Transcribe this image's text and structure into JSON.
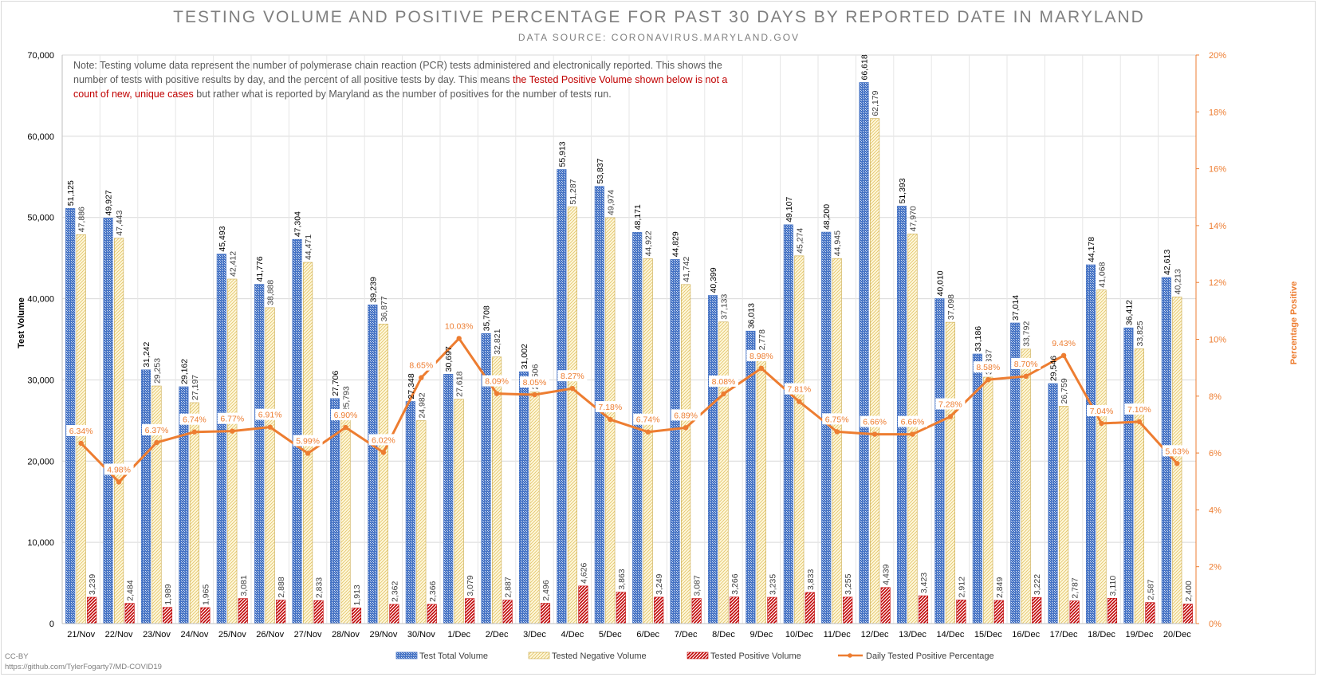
{
  "title": "TESTING VOLUME AND POSITIVE PERCENTAGE FOR PAST 30 DAYS BY REPORTED DATE IN MARYLAND",
  "subtitle": "DATA SOURCE: CORONAVIRUS.MARYLAND.GOV",
  "note": {
    "part1": "Note: Testing volume data represent the number of polymerase chain reaction (PCR) tests administered and electronically reported. This shows the number of tests with positive results by day, and the percent of all positive tests by day. This means ",
    "highlight": "the Tested Positive Volume shown below is not a count of new, unique cases",
    "part2": " but rather what is reported by Maryland as the number of positives for the number of tests run."
  },
  "credit": {
    "license": "CC-BY",
    "url": "https://github.com/TylerFogarty7/MD-COVID19"
  },
  "colors": {
    "total": "#4472c4",
    "negative": "#ffe699",
    "positive": "#c00000",
    "line": "#ed7d31"
  },
  "chart_data": {
    "type": "bar",
    "categories": [
      "21/Nov",
      "22/Nov",
      "23/Nov",
      "24/Nov",
      "25/Nov",
      "26/Nov",
      "27/Nov",
      "28/Nov",
      "29/Nov",
      "30/Nov",
      "1/Dec",
      "2/Dec",
      "3/Dec",
      "4/Dec",
      "5/Dec",
      "6/Dec",
      "7/Dec",
      "8/Dec",
      "9/Dec",
      "10/Dec",
      "11/Dec",
      "12/Dec",
      "13/Dec",
      "14/Dec",
      "15/Dec",
      "16/Dec",
      "17/Dec",
      "18/Dec",
      "19/Dec",
      "20/Dec"
    ],
    "series": [
      {
        "name": "Test Total Volume",
        "type": "bar",
        "axis": "left",
        "values": [
          51125,
          49927,
          31242,
          29162,
          45493,
          41776,
          47304,
          27706,
          39239,
          27348,
          30697,
          35708,
          31002,
          55913,
          53837,
          48171,
          44829,
          40399,
          36013,
          49107,
          48200,
          66618,
          51393,
          40010,
          33186,
          37014,
          29546,
          44178,
          36412,
          42613
        ],
        "labels": [
          "51,125",
          "49,927",
          "31,242",
          "29,162",
          "45,493",
          "41,776",
          "47,304",
          "27,706",
          "39,239",
          "27,348",
          "30,697",
          "35,708",
          "31,002",
          "55,913",
          "53,837",
          "48,171",
          "44,829",
          "40,399",
          "36,013",
          "49,107",
          "48,200",
          "66,618",
          "51,393",
          "40,010",
          "33,186",
          "37,014",
          "29,546",
          "44,178",
          "36,412",
          "42,613"
        ]
      },
      {
        "name": "Tested Negative Volume",
        "type": "bar",
        "axis": "left",
        "values": [
          47886,
          47443,
          29253,
          27197,
          42412,
          38888,
          44471,
          25793,
          36877,
          24982,
          27618,
          32821,
          28506,
          51287,
          49974,
          44922,
          41742,
          37133,
          32778,
          45274,
          44945,
          62179,
          47970,
          37098,
          30337,
          33792,
          26759,
          41068,
          33825,
          40213
        ],
        "labels": [
          "47,886",
          "47,443",
          "29,253",
          "27,197",
          "42,412",
          "38,888",
          "44,471",
          "25,793",
          "36,877",
          "24,982",
          "27,618",
          "32,821",
          "28,506",
          "51,287",
          "49,974",
          "44,922",
          "41,742",
          "37,133",
          "32,778",
          "45,274",
          "44,945",
          "62,179",
          "47,970",
          "37,098",
          "30,337",
          "33,792",
          "26,759",
          "41,068",
          "33,825",
          "40,213"
        ]
      },
      {
        "name": "Tested Positive Volume",
        "type": "bar",
        "axis": "left",
        "values": [
          3239,
          2484,
          1989,
          1965,
          3081,
          2888,
          2833,
          1913,
          2362,
          2366,
          3079,
          2887,
          2496,
          4626,
          3863,
          3249,
          3087,
          3266,
          3235,
          3833,
          3255,
          4439,
          3423,
          2912,
          2849,
          3222,
          2787,
          3110,
          2587,
          2400
        ],
        "labels": [
          "3,239",
          "2,484",
          "1,989",
          "1,965",
          "3,081",
          "2,888",
          "2,833",
          "1,913",
          "2,362",
          "2,366",
          "3,079",
          "2,887",
          "2,496",
          "4,626",
          "3,863",
          "3,249",
          "3,087",
          "3,266",
          "3,235",
          "3,833",
          "3,255",
          "4,439",
          "3,423",
          "2,912",
          "2,849",
          "3,222",
          "2,787",
          "3,110",
          "2,587",
          "2,400"
        ]
      },
      {
        "name": "Daily Tested Positive Percentage",
        "type": "line",
        "axis": "right",
        "values": [
          6.34,
          4.98,
          6.37,
          6.74,
          6.77,
          6.91,
          5.99,
          6.9,
          6.02,
          8.65,
          10.03,
          8.09,
          8.05,
          8.27,
          7.18,
          6.74,
          6.89,
          8.08,
          8.98,
          7.81,
          6.75,
          6.66,
          6.66,
          7.28,
          8.58,
          8.7,
          9.43,
          7.04,
          7.1,
          5.63
        ],
        "labels": [
          "6.34%",
          "4.98%",
          "6.37%",
          "6.74%",
          "6.77%",
          "6.91%",
          "5.99%",
          "6.90%",
          "6.02%",
          "8.65%",
          "10.03%",
          "8.09%",
          "8.05%",
          "8.27%",
          "7.18%",
          "6.74%",
          "6.89%",
          "8.08%",
          "8.98%",
          "7.81%",
          "6.75%",
          "6.66%",
          "6.66%",
          "7.28%",
          "8.58%",
          "8.70%",
          "9.43%",
          "7.04%",
          "7.10%",
          "5.63%"
        ]
      }
    ],
    "ylabel": "Test Volume",
    "ylabel_right": "Percentage Positive",
    "ylim": [
      0,
      70000
    ],
    "yticks": [
      "0",
      "10,000",
      "20,000",
      "30,000",
      "40,000",
      "50,000",
      "60,000",
      "70,000"
    ],
    "ylim_right": [
      0,
      20
    ],
    "yticks_right": [
      "0%",
      "2%",
      "4%",
      "6%",
      "8%",
      "10%",
      "12%",
      "14%",
      "16%",
      "18%",
      "20%"
    ],
    "grid": true,
    "legend_position": "bottom"
  }
}
